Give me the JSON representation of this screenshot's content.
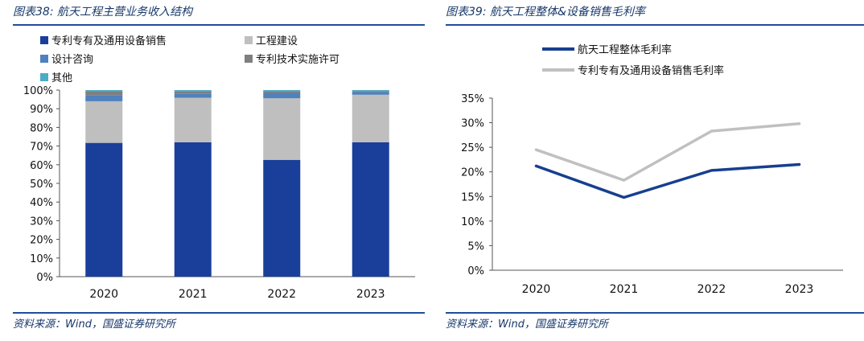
{
  "figures": [
    {
      "title": "图表38:  航天工程主营业务收入结构",
      "source": "资料来源：Wind，国盛证券研究所"
    },
    {
      "title": "图表39:  航天工程整体&设备销售毛利率",
      "source": "资料来源：Wind，国盛证券研究所"
    }
  ],
  "chart_data": [
    {
      "type": "bar",
      "stacked": true,
      "categories": [
        "2020",
        "2021",
        "2022",
        "2023"
      ],
      "ylim": [
        0,
        100
      ],
      "ytick_labels": [
        "0%",
        "10%",
        "20%",
        "30%",
        "40%",
        "50%",
        "60%",
        "70%",
        "80%",
        "90%",
        "100%"
      ],
      "grid": false,
      "legend_position": "top",
      "legend_order": [
        0,
        2,
        4,
        1,
        3
      ],
      "series": [
        {
          "name": "专利专有及通用设备销售",
          "color": "#1a3f9a",
          "values": [
            71.7,
            72.0,
            62.6,
            72.0
          ]
        },
        {
          "name": "工程建设",
          "color": "#bfbfbf",
          "values": [
            22.3,
            23.9,
            33.0,
            25.5
          ]
        },
        {
          "name": "设计咨询",
          "color": "#4f81bd",
          "values": [
            3.3,
            2.3,
            2.9,
            1.4
          ]
        },
        {
          "name": "专利技术实施许可",
          "color": "#7f7f7f",
          "values": [
            2.2,
            1.2,
            1.0,
            0.6
          ]
        },
        {
          "name": "其他",
          "color": "#4bacc6",
          "values": [
            0.5,
            0.6,
            0.5,
            0.5
          ]
        }
      ]
    },
    {
      "type": "line",
      "x": [
        "2020",
        "2021",
        "2022",
        "2023"
      ],
      "ylim": [
        0,
        35
      ],
      "ytick_labels": [
        "0%",
        "5%",
        "10%",
        "15%",
        "20%",
        "25%",
        "30%",
        "35%"
      ],
      "grid": false,
      "legend_position": "top-left",
      "series": [
        {
          "name": "航天工程整体毛利率",
          "color": "#173f8f",
          "values": [
            21.2,
            14.8,
            20.3,
            21.5
          ]
        },
        {
          "name": "专利专有及通用设备销售毛利率",
          "color": "#c0c0c0",
          "values": [
            24.5,
            18.3,
            28.3,
            29.8
          ]
        }
      ]
    }
  ]
}
